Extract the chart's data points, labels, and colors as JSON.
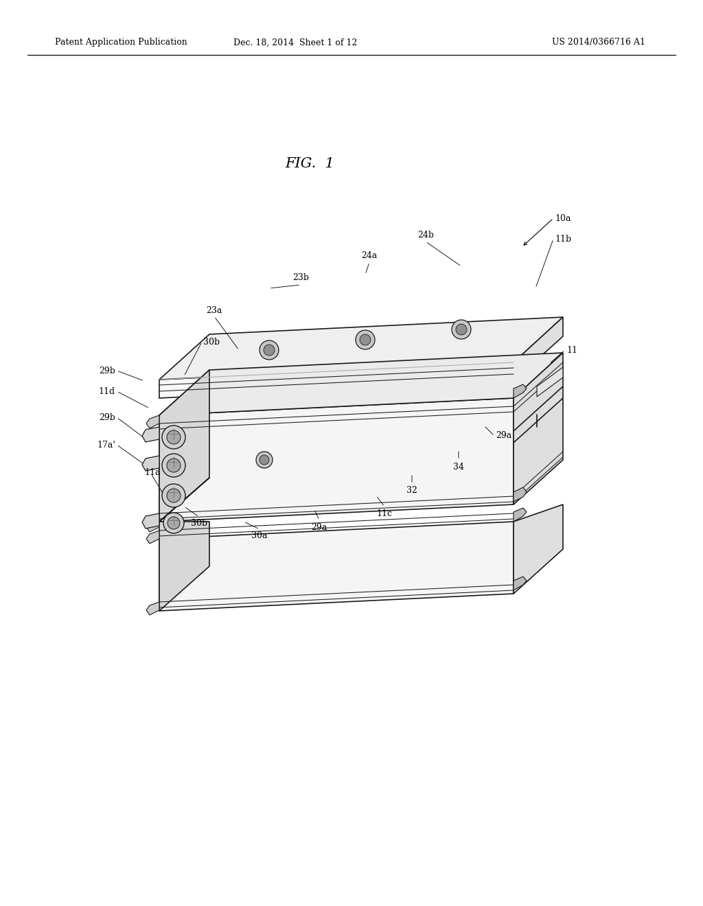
{
  "bg_color": "#ffffff",
  "lc": "#1a1a1a",
  "lw": 1.2,
  "tlw": 0.75,
  "header_left": "Patent Application Publication",
  "header_mid": "Dec. 18, 2014  Sheet 1 of 12",
  "header_right": "US 2014/0366716 A1",
  "fig_label": "FIG.  1"
}
